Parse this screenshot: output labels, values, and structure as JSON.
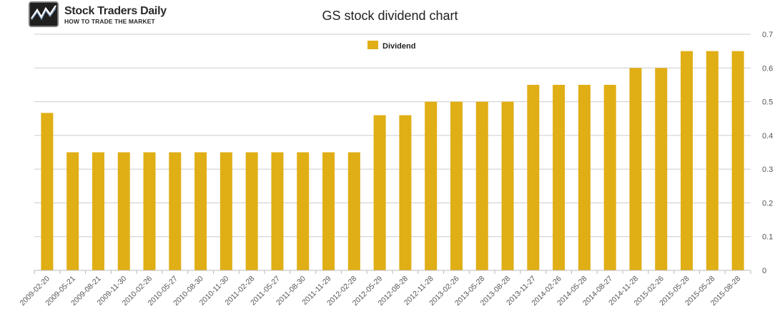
{
  "brand": {
    "name": "Stock Traders Daily",
    "tagline": "HOW TO TRADE THE MARKET",
    "logo_icon": "stock-chart-logo-icon"
  },
  "chart_data": {
    "type": "bar",
    "title": "GS stock dividend chart",
    "xlabel": "",
    "ylabel": "",
    "ylim": [
      0,
      0.7
    ],
    "yticks": [
      0,
      0.1,
      0.2,
      0.3,
      0.4,
      0.5,
      0.6,
      0.7
    ],
    "ytick_labels": [
      "0",
      "0.1",
      "0.2",
      "0.3",
      "0.4",
      "0.5",
      "0.6",
      "0.7"
    ],
    "y_axis_side": "right",
    "grid": true,
    "legend_position": "top-center",
    "categories": [
      "2009-02-20",
      "2009-05-21",
      "2009-08-21",
      "2009-11-30",
      "2010-02-26",
      "2010-05-27",
      "2010-08-30",
      "2010-11-30",
      "2011-02-28",
      "2011-05-27",
      "2011-08-30",
      "2011-11-29",
      "2012-02-28",
      "2012-05-29",
      "2012-08-28",
      "2012-11-28",
      "2013-02-26",
      "2013-05-28",
      "2013-08-28",
      "2013-11-27",
      "2014-02-26",
      "2014-05-28",
      "2014-08-27",
      "2014-11-28",
      "2015-02-26",
      "2015-05-28",
      "2015-05-28",
      "2015-08-28"
    ],
    "series": [
      {
        "name": "Dividend",
        "color": "#e0ae15",
        "values": [
          0.4667,
          0.35,
          0.35,
          0.35,
          0.35,
          0.35,
          0.35,
          0.35,
          0.35,
          0.35,
          0.35,
          0.35,
          0.35,
          0.46,
          0.46,
          0.5,
          0.5,
          0.5,
          0.5,
          0.55,
          0.55,
          0.55,
          0.55,
          0.6,
          0.6,
          0.65,
          0.65,
          0.65
        ]
      }
    ]
  }
}
